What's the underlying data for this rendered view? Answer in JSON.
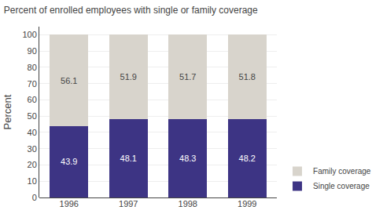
{
  "chart_data": {
    "type": "bar",
    "stacked": true,
    "title": "Percent of enrolled employees with single or family coverage",
    "categories": [
      "1996",
      "1997",
      "1998",
      "1999"
    ],
    "series": [
      {
        "name": "Single coverage",
        "color": "#3d3484",
        "values": [
          43.9,
          48.1,
          48.3,
          48.2
        ]
      },
      {
        "name": "Family coverage",
        "color": "#d8d4cc",
        "values": [
          56.1,
          51.9,
          51.7,
          51.8
        ]
      }
    ],
    "ylabel": "Percent",
    "ylim": [
      0,
      105
    ],
    "yticks": [
      0,
      10,
      20,
      30,
      40,
      50,
      60,
      70,
      80,
      90,
      100
    ],
    "grid": true,
    "legend": "lower right",
    "data_labels": true
  }
}
